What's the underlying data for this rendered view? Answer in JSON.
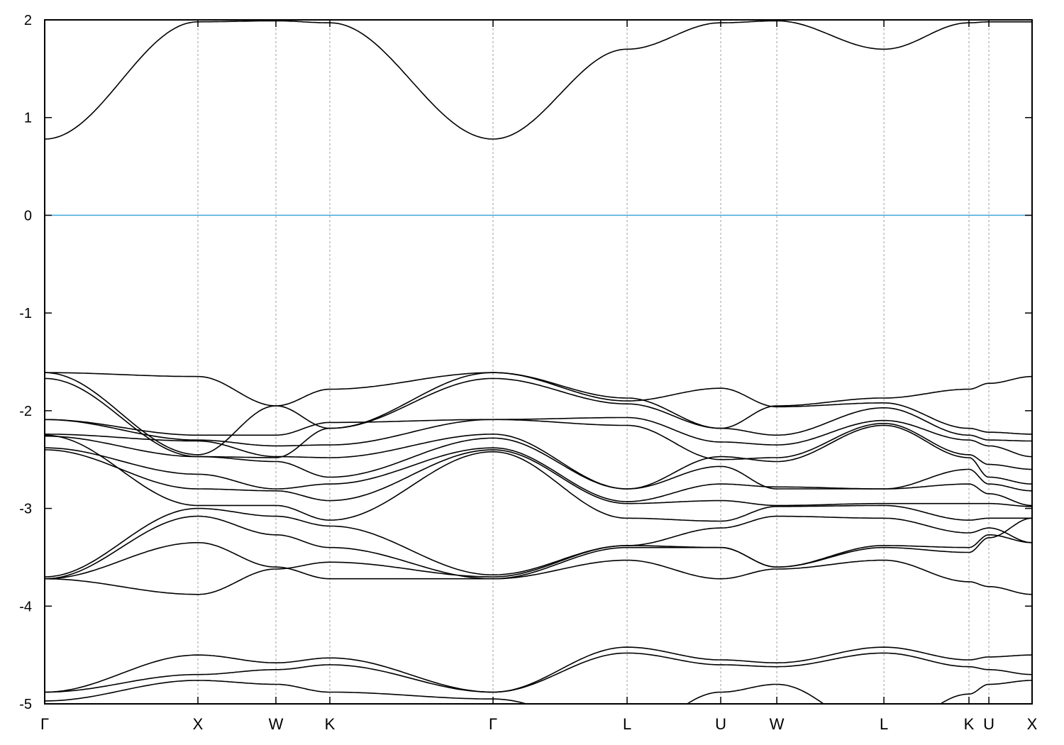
{
  "chart_data": {
    "type": "line",
    "title": "",
    "xlabel": "",
    "ylabel": "",
    "ylim": [
      -5,
      2
    ],
    "yticks": [
      2,
      1,
      0,
      -1,
      -2,
      -3,
      -4,
      -5
    ],
    "ytick_labels": [
      "2",
      "1",
      "0",
      "-1",
      "-2",
      "-3",
      "-4",
      "-5"
    ],
    "kpoints": {
      "labels": [
        "Γ",
        "X",
        "W",
        "K",
        "Γ",
        "L",
        "U",
        "W",
        "L",
        "K",
        "U",
        "X"
      ],
      "positions": [
        0,
        1.0,
        1.509,
        1.861,
        2.926,
        3.801,
        4.412,
        4.778,
        5.477,
        6.032,
        6.162,
        6.444
      ]
    },
    "grid": "dashed vertical lines at k-points",
    "fermi_level": {
      "value": 0,
      "color": "#3fa9dc"
    },
    "line_color": "#000000",
    "bands": [
      [
        0.78,
        1.98,
        1.99,
        1.97,
        0.78,
        1.7,
        1.97,
        1.99,
        1.7,
        1.97,
        1.98,
        1.98
      ],
      [
        -1.61,
        -1.65,
        -1.95,
        -2.18,
        -1.61,
        -1.87,
        -2.18,
        -1.95,
        -1.87,
        -1.78,
        -1.72,
        -1.65
      ],
      [
        -1.61,
        -2.45,
        -1.95,
        -1.78,
        -1.61,
        -1.9,
        -1.77,
        -1.96,
        -1.92,
        -2.18,
        -2.22,
        -2.24
      ],
      [
        -1.67,
        -2.47,
        -2.48,
        -2.18,
        -1.67,
        -1.93,
        -2.18,
        -2.25,
        -1.97,
        -2.25,
        -2.3,
        -2.31
      ],
      [
        -2.09,
        -2.25,
        -2.25,
        -2.12,
        -2.09,
        -2.07,
        -2.32,
        -2.35,
        -2.1,
        -2.3,
        -2.36,
        -2.47
      ],
      [
        -2.09,
        -2.3,
        -2.36,
        -2.35,
        -2.09,
        -2.15,
        -2.5,
        -2.48,
        -2.13,
        -2.45,
        -2.55,
        -2.6
      ],
      [
        -2.24,
        -2.31,
        -2.47,
        -2.48,
        -2.24,
        -2.8,
        -2.47,
        -2.52,
        -2.15,
        -2.48,
        -2.68,
        -2.75
      ],
      [
        -2.26,
        -2.47,
        -2.52,
        -2.68,
        -2.28,
        -2.8,
        -2.57,
        -2.8,
        -2.8,
        -2.6,
        -2.75,
        -2.82
      ],
      [
        -2.38,
        -2.65,
        -2.8,
        -2.75,
        -2.38,
        -2.93,
        -2.75,
        -2.78,
        -2.8,
        -2.75,
        -2.85,
        -2.97
      ],
      [
        -2.4,
        -2.8,
        -2.82,
        -2.92,
        -2.4,
        -2.95,
        -2.92,
        -2.97,
        -2.95,
        -2.95,
        -2.95,
        -2.98
      ],
      [
        -2.25,
        -2.97,
        -2.97,
        -3.12,
        -2.42,
        -3.1,
        -3.13,
        -2.98,
        -2.97,
        -3.12,
        -3.1,
        -3.1
      ],
      [
        -3.7,
        -3.0,
        -3.08,
        -3.18,
        -3.68,
        -3.38,
        -3.2,
        -3.08,
        -3.1,
        -3.25,
        -3.2,
        -3.35
      ],
      [
        -3.72,
        -3.08,
        -3.27,
        -3.4,
        -3.72,
        -3.4,
        -3.4,
        -3.6,
        -3.38,
        -3.4,
        -3.27,
        -3.35
      ],
      [
        -3.72,
        -3.35,
        -3.6,
        -3.72,
        -3.72,
        -3.53,
        -3.72,
        -3.62,
        -3.53,
        -3.75,
        -3.8,
        -3.88
      ],
      [
        -3.72,
        -3.88,
        -3.62,
        -3.55,
        -3.7,
        -3.38,
        -3.4,
        -3.6,
        -3.4,
        -3.45,
        -3.3,
        -3.1
      ],
      [
        -4.88,
        -4.5,
        -4.58,
        -4.53,
        -4.88,
        -4.42,
        -4.55,
        -4.58,
        -4.42,
        -4.55,
        -4.52,
        -4.5
      ],
      [
        -4.88,
        -4.7,
        -4.65,
        -4.6,
        -4.88,
        -4.48,
        -4.6,
        -4.62,
        -4.48,
        -4.62,
        -4.65,
        -4.7
      ],
      [
        -4.97,
        -4.76,
        -4.8,
        -4.88,
        -4.95,
        -5.3,
        -4.88,
        -4.8,
        -5.3,
        -4.9,
        -4.8,
        -4.76
      ]
    ]
  }
}
